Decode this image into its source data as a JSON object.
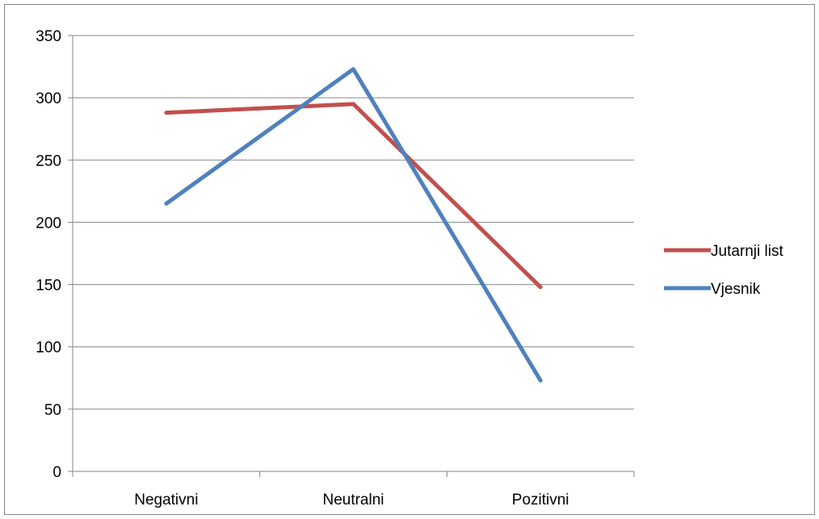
{
  "chart_data": {
    "type": "line",
    "categories": [
      "Negativni",
      "Neutralni",
      "Pozitivni"
    ],
    "series": [
      {
        "name": "Jutarnji list",
        "color": "#C0504D",
        "values": [
          288,
          295,
          148
        ]
      },
      {
        "name": "Vjesnik",
        "color": "#4F81BD",
        "values": [
          215,
          323,
          73
        ]
      }
    ],
    "ylim": [
      0,
      350
    ],
    "yticks": [
      0,
      50,
      100,
      150,
      200,
      250,
      300,
      350
    ],
    "grid": true,
    "legend": "right",
    "title": "",
    "xlabel": "",
    "ylabel": ""
  }
}
